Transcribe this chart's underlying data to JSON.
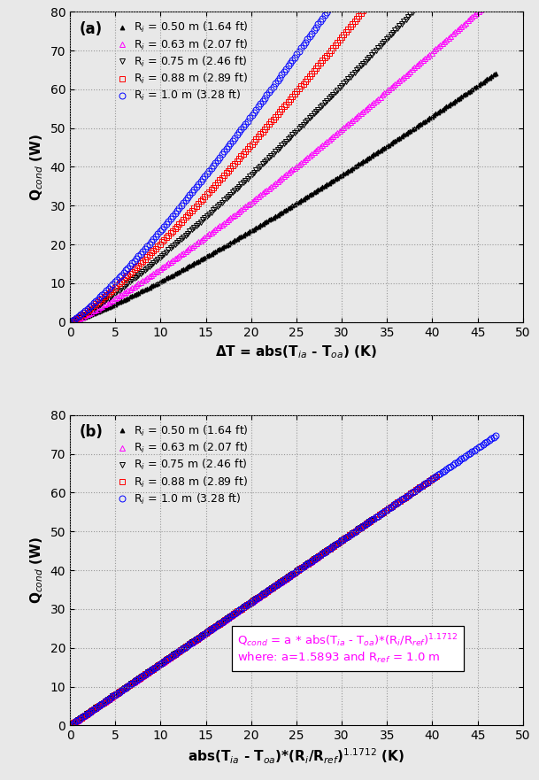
{
  "radii": [
    0.5,
    0.63,
    0.75,
    0.88,
    1.0
  ],
  "radii_ft": [
    "1.64",
    "2.07",
    "2.46",
    "2.89",
    "3.28"
  ],
  "colors": [
    "black",
    "#FF00FF",
    "black",
    "red",
    "blue"
  ],
  "markers": [
    "^",
    "^",
    "v",
    "s",
    "o"
  ],
  "fillstyles": [
    "full",
    "none",
    "none",
    "none",
    "none"
  ],
  "markersizes": [
    3.5,
    4,
    4,
    4,
    5
  ],
  "a": 1.5893,
  "R_ref": 1.0,
  "exponent": 1.1712,
  "dT_max": 47,
  "panel_a_label": "(a)",
  "panel_b_label": "(b)",
  "xlabel_a": "ΔT = abs(T$_{ia}$ - T$_{oa}$) (K)",
  "xlabel_b": "abs(T$_{ia}$ - T$_{oa}$)*(R$_i$/R$_{ref}$)$^{1.1712}$ (K)",
  "ylabel": "Q$_{cond}$ (W)",
  "ylim": [
    0,
    80
  ],
  "xlim_a": [
    0,
    50
  ],
  "xlim_b": [
    0,
    50
  ],
  "yticks": [
    0,
    10,
    20,
    30,
    40,
    50,
    60,
    70,
    80
  ],
  "xticks_a": [
    0,
    5,
    10,
    15,
    20,
    25,
    30,
    35,
    40,
    45,
    50
  ],
  "xticks_b": [
    0,
    5,
    10,
    15,
    20,
    25,
    30,
    35,
    40,
    45,
    50
  ],
  "annotation_text_line1": "Q$_{cond}$ = a * abs(T$_{ia}$ - T$_{oa}$)*(R$_i$/R$_{ref}$)$^{1.1712}$",
  "annotation_text_line2": "where: a=1.5893 and R$_{ref}$ = 1.0 m",
  "annotation_color": "#FF00FF",
  "grid_color": "#999999",
  "grid_style": "dotted",
  "n_points": 200,
  "background_color": "#e8e8e8"
}
